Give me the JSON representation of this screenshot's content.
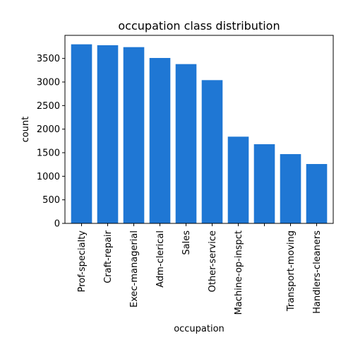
{
  "chart_data": {
    "type": "bar",
    "title": "occupation class distribution",
    "xlabel": "occupation",
    "ylabel": "count",
    "categories": [
      "Prof-specialty",
      "Craft-repair",
      "Exec-managerial",
      "Adm-clerical",
      "Sales",
      "Other-service",
      "Machine-op-inspct",
      "",
      "Transport-moving",
      "Handlers-cleaners"
    ],
    "values": [
      3800,
      3780,
      3740,
      3510,
      3380,
      3040,
      1840,
      1680,
      1470,
      1260
    ],
    "ylim": [
      0,
      3990
    ],
    "yticks": [
      0,
      500,
      1000,
      1500,
      2000,
      2500,
      3000,
      3500
    ],
    "bar_color": "#1f77d4",
    "grid": false,
    "legend": "none"
  }
}
